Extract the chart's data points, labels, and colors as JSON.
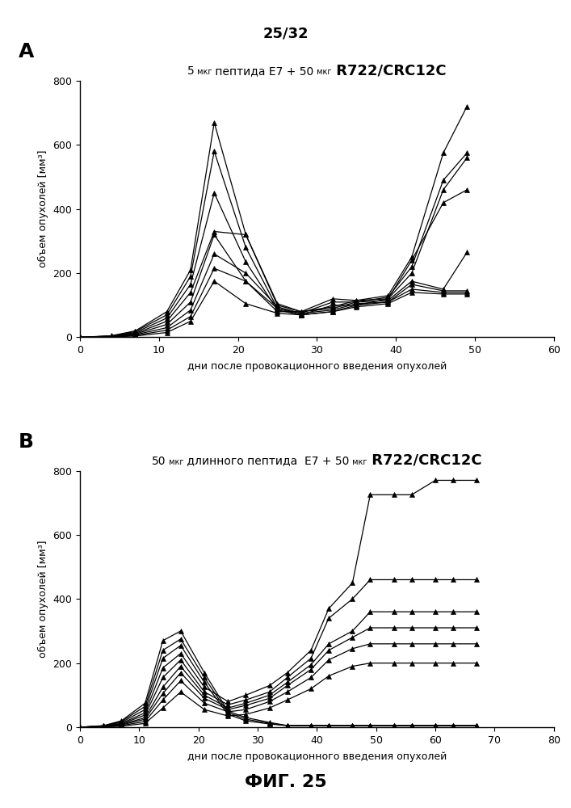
{
  "page_label": "25/32",
  "fig_label": "ФИГ. 25",
  "panel_A": {
    "ylabel": "объем опухолей [мм³]",
    "xlabel": "дни после провокационного введения опухолей",
    "xlim": [
      0,
      60
    ],
    "ylim": [
      0,
      800
    ],
    "xticks": [
      0,
      10,
      20,
      30,
      40,
      50,
      60
    ],
    "yticks": [
      0,
      200,
      400,
      600,
      800
    ],
    "series": [
      [
        0,
        4,
        7,
        11,
        14,
        17,
        21,
        25,
        28,
        32,
        35,
        39,
        42,
        46,
        49
      ],
      [
        0,
        4,
        7,
        11,
        14,
        17,
        21,
        25,
        28,
        32,
        35,
        39,
        42,
        46,
        49
      ],
      [
        0,
        4,
        7,
        11,
        14,
        17,
        21,
        25,
        28,
        32,
        35,
        39,
        42,
        46,
        49
      ],
      [
        0,
        4,
        7,
        11,
        14,
        17,
        21,
        25,
        28,
        32,
        35,
        39,
        42,
        46,
        49
      ],
      [
        0,
        4,
        7,
        11,
        14,
        17,
        21,
        25,
        28,
        32,
        35,
        39,
        42,
        46,
        49
      ],
      [
        0,
        4,
        7,
        11,
        14,
        17,
        21,
        25,
        28,
        32,
        35,
        39,
        42,
        46,
        49
      ],
      [
        0,
        4,
        7,
        11,
        14,
        17,
        21,
        25,
        28,
        32,
        35,
        39,
        42,
        46,
        49
      ],
      [
        0,
        4,
        7,
        11,
        14,
        17,
        21,
        25,
        28,
        32,
        35,
        39,
        42,
        46,
        49
      ]
    ],
    "values": [
      [
        0,
        5,
        20,
        80,
        210,
        670,
        320,
        100,
        80,
        120,
        115,
        130,
        250,
        575,
        720
      ],
      [
        0,
        4,
        18,
        70,
        190,
        580,
        280,
        90,
        75,
        110,
        110,
        125,
        220,
        490,
        575
      ],
      [
        0,
        4,
        15,
        60,
        165,
        450,
        235,
        85,
        70,
        100,
        100,
        120,
        200,
        460,
        560
      ],
      [
        0,
        3,
        12,
        50,
        140,
        330,
        320,
        105,
        80,
        95,
        115,
        120,
        240,
        420,
        460
      ],
      [
        0,
        3,
        10,
        40,
        110,
        320,
        175,
        80,
        80,
        90,
        110,
        115,
        175,
        150,
        265
      ],
      [
        0,
        2,
        8,
        30,
        85,
        260,
        200,
        95,
        75,
        85,
        105,
        110,
        165,
        145,
        145
      ],
      [
        0,
        2,
        6,
        22,
        65,
        215,
        175,
        90,
        70,
        80,
        100,
        110,
        150,
        140,
        140
      ],
      [
        0,
        1,
        4,
        15,
        50,
        175,
        105,
        75,
        70,
        80,
        95,
        105,
        140,
        135,
        135
      ]
    ]
  },
  "panel_B": {
    "ylabel": "объем опухолей [мм³]",
    "xlabel": "дни после провокационного введения опухолей",
    "xlim": [
      0,
      80
    ],
    "ylim": [
      0,
      800
    ],
    "xticks": [
      0,
      10,
      20,
      30,
      40,
      50,
      60,
      70,
      80
    ],
    "yticks": [
      0,
      200,
      400,
      600,
      800
    ],
    "series": [
      [
        0,
        4,
        7,
        11,
        14,
        17,
        21,
        25,
        28,
        32,
        35,
        39,
        42,
        46,
        49,
        53,
        56,
        60,
        63,
        67
      ],
      [
        0,
        4,
        7,
        11,
        14,
        17,
        21,
        25,
        28,
        32,
        35,
        39,
        42,
        46,
        49,
        53,
        56,
        60,
        63,
        67
      ],
      [
        0,
        4,
        7,
        11,
        14,
        17,
        21,
        25,
        28,
        32,
        35,
        39,
        42,
        46,
        49,
        53,
        56,
        60,
        63,
        67
      ],
      [
        0,
        4,
        7,
        11,
        14,
        17,
        21,
        25,
        28,
        32,
        35,
        39,
        42,
        46,
        49,
        53,
        56,
        60,
        63,
        67
      ],
      [
        0,
        4,
        7,
        11,
        14,
        17,
        21,
        25,
        28,
        32,
        35,
        39,
        42,
        46,
        49,
        53,
        56,
        60,
        63,
        67
      ],
      [
        0,
        4,
        7,
        11,
        14,
        17,
        21,
        25,
        28,
        32,
        35,
        39,
        42,
        46,
        49,
        53,
        56,
        60,
        63,
        67
      ],
      [
        0,
        4,
        7,
        11,
        14,
        17,
        21,
        25,
        28,
        32,
        35,
        39,
        42,
        46,
        49,
        53,
        56,
        60,
        63,
        67
      ],
      [
        0,
        4,
        7,
        11,
        14,
        17,
        21,
        25,
        28,
        32,
        35,
        39,
        42,
        46,
        49,
        53,
        56,
        60,
        63,
        67
      ],
      [
        0,
        4,
        7,
        11,
        14,
        17,
        21,
        25,
        28,
        32,
        35,
        39,
        42,
        46,
        49,
        53,
        56,
        60,
        63,
        67
      ]
    ],
    "values": [
      [
        0,
        5,
        20,
        75,
        270,
        300,
        170,
        50,
        30,
        15,
        5,
        5,
        5,
        5,
        5,
        5,
        5,
        5,
        5,
        5
      ],
      [
        0,
        4,
        18,
        65,
        240,
        275,
        155,
        45,
        25,
        12,
        5,
        5,
        5,
        5,
        5,
        5,
        5,
        5,
        5,
        5
      ],
      [
        0,
        4,
        15,
        55,
        215,
        255,
        140,
        40,
        20,
        10,
        5,
        5,
        5,
        5,
        5,
        5,
        5,
        5,
        5,
        5
      ],
      [
        0,
        3,
        12,
        45,
        185,
        230,
        125,
        80,
        100,
        130,
        170,
        240,
        370,
        450,
        725,
        725,
        725,
        770,
        770,
        770
      ],
      [
        0,
        3,
        10,
        38,
        155,
        210,
        110,
        70,
        85,
        110,
        155,
        215,
        340,
        400,
        460,
        460,
        460,
        460,
        460,
        460
      ],
      [
        0,
        2,
        8,
        30,
        125,
        190,
        100,
        60,
        75,
        100,
        140,
        195,
        260,
        300,
        360,
        360,
        360,
        360,
        360,
        360
      ],
      [
        0,
        2,
        7,
        25,
        105,
        170,
        90,
        55,
        68,
        90,
        130,
        180,
        240,
        280,
        310,
        310,
        310,
        310,
        310,
        310
      ],
      [
        0,
        1,
        5,
        18,
        85,
        145,
        75,
        48,
        55,
        80,
        110,
        155,
        210,
        245,
        260,
        260,
        260,
        260,
        260,
        260
      ],
      [
        0,
        1,
        3,
        12,
        60,
        110,
        55,
        35,
        40,
        60,
        85,
        120,
        160,
        190,
        200,
        200,
        200,
        200,
        200,
        200
      ]
    ]
  },
  "title_A_parts": [
    {
      "text": "5",
      "size": 10,
      "weight": "normal"
    },
    {
      "text": " мкг",
      "size": 7,
      "weight": "normal"
    },
    {
      "text": " пептида E7 + 50",
      "size": 10,
      "weight": "normal"
    },
    {
      "text": " мкг",
      "size": 7,
      "weight": "normal"
    },
    {
      "text": " R722/CRC12C",
      "size": 13,
      "weight": "bold"
    }
  ],
  "title_B_parts": [
    {
      "text": "50",
      "size": 10,
      "weight": "normal"
    },
    {
      "text": " мкг",
      "size": 7,
      "weight": "normal"
    },
    {
      "text": " длинного пептида  E7 + 50",
      "size": 10,
      "weight": "normal"
    },
    {
      "text": " мкг",
      "size": 7,
      "weight": "normal"
    },
    {
      "text": " R722/CRC12C",
      "size": 13,
      "weight": "bold"
    }
  ]
}
